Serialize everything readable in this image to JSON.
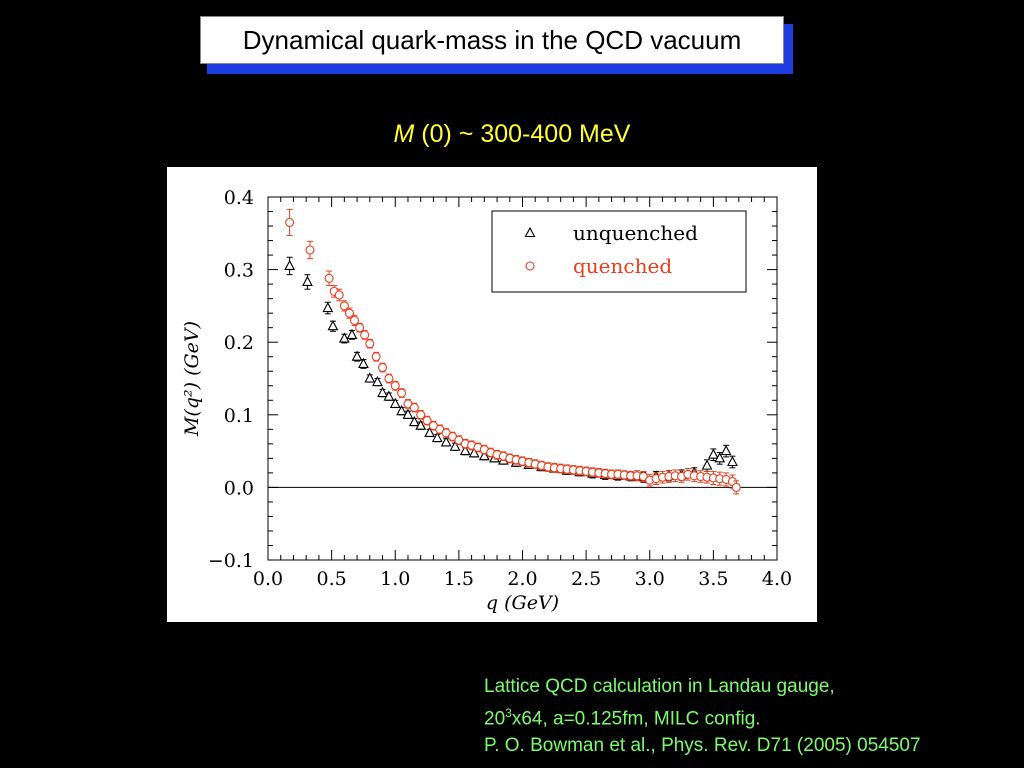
{
  "slide": {
    "title": "Dynamical quark-mass in the QCD vacuum",
    "subtitle_var": "M",
    "subtitle_arg": " (0)",
    "subtitle_rest": "  ~ 300-400 MeV",
    "caption": {
      "line1": "Lattice QCD calculation in Landau gauge,",
      "line2_pre": "20",
      "line2_sup": "3",
      "line2_post": "x64, a=0.125fm, MILC config.",
      "line3": "P. O. Bowman et al., Phys. Rev. D71 (2005) 054507"
    }
  },
  "chart_data": {
    "type": "scatter",
    "xlabel": "q (GeV)",
    "ylabel": "M(q²) (GeV)",
    "xlim": [
      0.0,
      4.0
    ],
    "ylim": [
      -0.1,
      0.4
    ],
    "xticks": [
      "0.0",
      "0.5",
      "1.0",
      "1.5",
      "2.0",
      "2.5",
      "3.0",
      "3.5",
      "4.0"
    ],
    "yticks": [
      "−0.1",
      "0.0",
      "0.1",
      "0.2",
      "0.3",
      "0.4"
    ],
    "legend_position": "top-right",
    "series": [
      {
        "name": "unquenched",
        "marker": "triangle",
        "color": "#000000",
        "points": [
          [
            0.17,
            0.305,
            0.012
          ],
          [
            0.31,
            0.283,
            0.01
          ],
          [
            0.47,
            0.247,
            0.008
          ],
          [
            0.51,
            0.222,
            0.007
          ],
          [
            0.6,
            0.205,
            0.006
          ],
          [
            0.66,
            0.21,
            0.006
          ],
          [
            0.7,
            0.18,
            0.006
          ],
          [
            0.75,
            0.17,
            0.006
          ],
          [
            0.8,
            0.15,
            0.005
          ],
          [
            0.86,
            0.145,
            0.005
          ],
          [
            0.9,
            0.13,
            0.005
          ],
          [
            0.95,
            0.125,
            0.005
          ],
          [
            1.0,
            0.115,
            0.005
          ],
          [
            1.05,
            0.105,
            0.005
          ],
          [
            1.1,
            0.1,
            0.005
          ],
          [
            1.15,
            0.09,
            0.005
          ],
          [
            1.2,
            0.085,
            0.005
          ],
          [
            1.27,
            0.075,
            0.005
          ],
          [
            1.33,
            0.068,
            0.005
          ],
          [
            1.4,
            0.062,
            0.005
          ],
          [
            1.47,
            0.056,
            0.005
          ],
          [
            1.55,
            0.05,
            0.005
          ],
          [
            1.62,
            0.047,
            0.005
          ],
          [
            1.7,
            0.043,
            0.005
          ],
          [
            1.78,
            0.04,
            0.005
          ],
          [
            1.85,
            0.037,
            0.005
          ],
          [
            1.95,
            0.034,
            0.005
          ],
          [
            2.05,
            0.031,
            0.005
          ],
          [
            2.15,
            0.028,
            0.005
          ],
          [
            2.25,
            0.026,
            0.005
          ],
          [
            2.35,
            0.023,
            0.005
          ],
          [
            2.45,
            0.021,
            0.005
          ],
          [
            2.55,
            0.019,
            0.006
          ],
          [
            2.65,
            0.017,
            0.006
          ],
          [
            2.75,
            0.016,
            0.006
          ],
          [
            2.85,
            0.015,
            0.006
          ],
          [
            2.95,
            0.014,
            0.007
          ],
          [
            3.05,
            0.015,
            0.007
          ],
          [
            3.15,
            0.016,
            0.007
          ],
          [
            3.25,
            0.017,
            0.007
          ],
          [
            3.35,
            0.02,
            0.007
          ],
          [
            3.45,
            0.03,
            0.008
          ],
          [
            3.5,
            0.045,
            0.008
          ],
          [
            3.55,
            0.04,
            0.008
          ],
          [
            3.6,
            0.05,
            0.008
          ],
          [
            3.65,
            0.035,
            0.008
          ]
        ]
      },
      {
        "name": "quenched",
        "marker": "circle",
        "color": "#e8401e",
        "points": [
          [
            0.17,
            0.365,
            0.018
          ],
          [
            0.33,
            0.327,
            0.012
          ],
          [
            0.48,
            0.288,
            0.01
          ],
          [
            0.52,
            0.27,
            0.008
          ],
          [
            0.56,
            0.265,
            0.008
          ],
          [
            0.6,
            0.25,
            0.007
          ],
          [
            0.64,
            0.24,
            0.007
          ],
          [
            0.68,
            0.23,
            0.007
          ],
          [
            0.72,
            0.22,
            0.006
          ],
          [
            0.76,
            0.21,
            0.006
          ],
          [
            0.8,
            0.198,
            0.006
          ],
          [
            0.85,
            0.18,
            0.006
          ],
          [
            0.9,
            0.165,
            0.006
          ],
          [
            0.95,
            0.15,
            0.006
          ],
          [
            1.0,
            0.14,
            0.006
          ],
          [
            1.05,
            0.13,
            0.006
          ],
          [
            1.1,
            0.115,
            0.006
          ],
          [
            1.15,
            0.11,
            0.006
          ],
          [
            1.2,
            0.1,
            0.006
          ],
          [
            1.25,
            0.092,
            0.006
          ],
          [
            1.3,
            0.085,
            0.006
          ],
          [
            1.35,
            0.08,
            0.006
          ],
          [
            1.4,
            0.075,
            0.006
          ],
          [
            1.45,
            0.07,
            0.006
          ],
          [
            1.5,
            0.065,
            0.006
          ],
          [
            1.55,
            0.06,
            0.006
          ],
          [
            1.6,
            0.058,
            0.006
          ],
          [
            1.65,
            0.055,
            0.006
          ],
          [
            1.7,
            0.052,
            0.006
          ],
          [
            1.75,
            0.048,
            0.006
          ],
          [
            1.8,
            0.045,
            0.006
          ],
          [
            1.85,
            0.043,
            0.006
          ],
          [
            1.9,
            0.04,
            0.006
          ],
          [
            1.95,
            0.038,
            0.006
          ],
          [
            2.0,
            0.036,
            0.006
          ],
          [
            2.05,
            0.034,
            0.006
          ],
          [
            2.1,
            0.032,
            0.006
          ],
          [
            2.15,
            0.03,
            0.006
          ],
          [
            2.2,
            0.028,
            0.006
          ],
          [
            2.25,
            0.027,
            0.006
          ],
          [
            2.3,
            0.026,
            0.006
          ],
          [
            2.35,
            0.025,
            0.006
          ],
          [
            2.4,
            0.024,
            0.006
          ],
          [
            2.45,
            0.023,
            0.006
          ],
          [
            2.5,
            0.022,
            0.006
          ],
          [
            2.55,
            0.021,
            0.006
          ],
          [
            2.6,
            0.02,
            0.006
          ],
          [
            2.65,
            0.019,
            0.006
          ],
          [
            2.7,
            0.018,
            0.006
          ],
          [
            2.75,
            0.018,
            0.006
          ],
          [
            2.8,
            0.017,
            0.006
          ],
          [
            2.85,
            0.016,
            0.006
          ],
          [
            2.9,
            0.016,
            0.007
          ],
          [
            2.95,
            0.015,
            0.007
          ],
          [
            3.0,
            0.01,
            0.008
          ],
          [
            3.05,
            0.012,
            0.008
          ],
          [
            3.1,
            0.014,
            0.008
          ],
          [
            3.15,
            0.015,
            0.008
          ],
          [
            3.2,
            0.016,
            0.008
          ],
          [
            3.25,
            0.015,
            0.008
          ],
          [
            3.3,
            0.018,
            0.008
          ],
          [
            3.35,
            0.016,
            0.008
          ],
          [
            3.4,
            0.015,
            0.008
          ],
          [
            3.45,
            0.014,
            0.008
          ],
          [
            3.5,
            0.013,
            0.009
          ],
          [
            3.55,
            0.012,
            0.009
          ],
          [
            3.6,
            0.011,
            0.009
          ],
          [
            3.65,
            0.008,
            0.009
          ],
          [
            3.68,
            0.0,
            0.009
          ]
        ]
      }
    ]
  }
}
